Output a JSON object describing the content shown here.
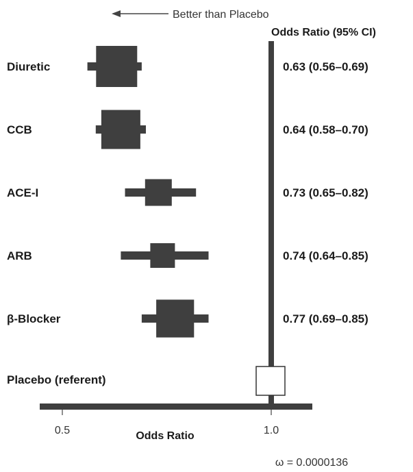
{
  "chart_data": {
    "type": "forest",
    "title": "",
    "direction_note": "Better than Placebo",
    "column_header": "Odds Ratio (95% CI)",
    "xlabel": "Odds Ratio",
    "xlim": [
      0.45,
      1.1
    ],
    "xticks": [
      0.5,
      1.0
    ],
    "xtick_labels": [
      "0.5",
      "1.0"
    ],
    "reference_value": 1.0,
    "reference": {
      "label": "Placebo (referent)",
      "value": 1.0
    },
    "rows": [
      {
        "label": "Diuretic",
        "or": 0.63,
        "lo": 0.56,
        "hi": 0.69,
        "text": "0.63 (0.56–0.69)",
        "weight": 1.0
      },
      {
        "label": "CCB",
        "or": 0.64,
        "lo": 0.58,
        "hi": 0.7,
        "text": "0.64 (0.58–0.70)",
        "weight": 0.95
      },
      {
        "label": "ACE-I",
        "or": 0.73,
        "lo": 0.65,
        "hi": 0.82,
        "text": "0.73 (0.65–0.82)",
        "weight": 0.65
      },
      {
        "label": "ARB",
        "or": 0.74,
        "lo": 0.64,
        "hi": 0.85,
        "text": "0.74 (0.64–0.85)",
        "weight": 0.6
      },
      {
        "label": "β-Blocker",
        "or": 0.77,
        "lo": 0.69,
        "hi": 0.85,
        "text": "0.77 (0.69–0.85)",
        "weight": 0.92
      }
    ],
    "footnote": "ω = 0.0000136",
    "colors": {
      "marker": "#3f3f3f",
      "axis": "#3f3f3f",
      "text": "#1a1a1a",
      "reference_fill": "#ffffff"
    }
  }
}
